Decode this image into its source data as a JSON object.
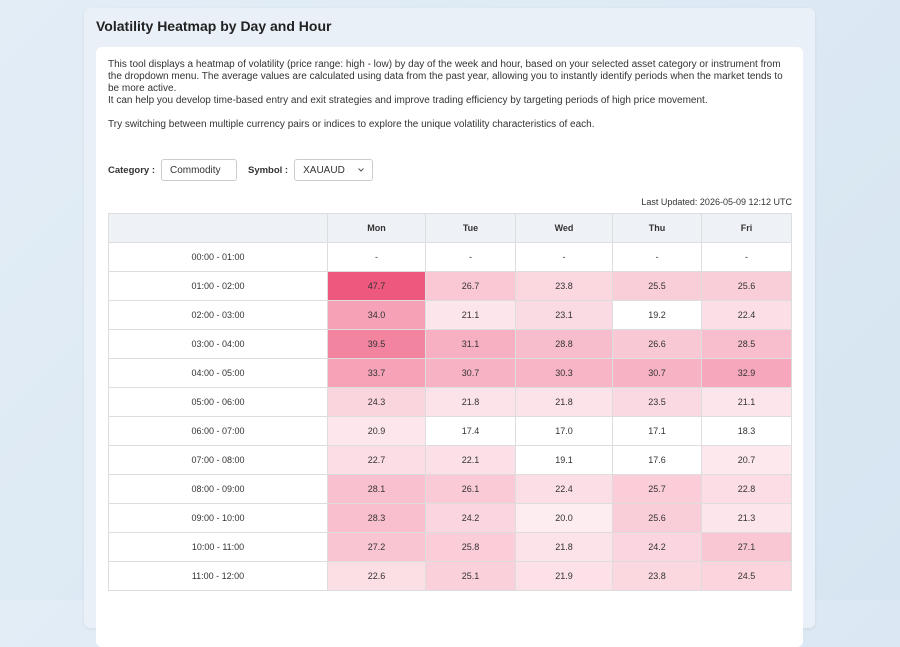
{
  "header": {
    "title": "Volatility Heatmap by Day and Hour"
  },
  "description": {
    "paragraphs": [
      "This tool displays a heatmap of volatility (price range: high - low) by day of the week and hour, based on your selected asset category or instrument from the dropdown menu. The average values are calculated using data from the past year, allowing you to instantly identify periods when the market tends to be more active.",
      "It can help you develop time-based entry and exit strategies and improve trading efficiency by targeting periods of high price movement.",
      "Try switching between multiple currency pairs or indices to explore the unique volatility characteristics of each."
    ]
  },
  "filters": {
    "category_label": "Category :",
    "category_value": "Commodity",
    "symbol_label": "Symbol :",
    "symbol_value": "XAUAUD"
  },
  "last_updated": "Last Updated: 2026-05-09 12:12 UTC",
  "table": {
    "columns": [
      "Mon",
      "Tue",
      "Wed",
      "Thu",
      "Fri"
    ],
    "rows": [
      {
        "time": "00:00 - 01:00",
        "cells": [
          "-",
          "-",
          "-",
          "-",
          "-"
        ]
      },
      {
        "time": "01:00 - 02:00",
        "cells": [
          "47.7",
          "26.7",
          "23.8",
          "25.5",
          "25.6"
        ]
      },
      {
        "time": "02:00 - 03:00",
        "cells": [
          "34.0",
          "21.1",
          "23.1",
          "19.2",
          "22.4"
        ]
      },
      {
        "time": "03:00 - 04:00",
        "cells": [
          "39.5",
          "31.1",
          "28.8",
          "26.6",
          "28.5"
        ]
      },
      {
        "time": "04:00 - 05:00",
        "cells": [
          "33.7",
          "30.7",
          "30.3",
          "30.7",
          "32.9"
        ]
      },
      {
        "time": "05:00 - 06:00",
        "cells": [
          "24.3",
          "21.8",
          "21.8",
          "23.5",
          "21.1"
        ]
      },
      {
        "time": "06:00 - 07:00",
        "cells": [
          "20.9",
          "17.4",
          "17.0",
          "17.1",
          "18.3"
        ]
      },
      {
        "time": "07:00 - 08:00",
        "cells": [
          "22.7",
          "22.1",
          "19.1",
          "17.6",
          "20.7"
        ]
      },
      {
        "time": "08:00 - 09:00",
        "cells": [
          "28.1",
          "26.1",
          "22.4",
          "25.7",
          "22.8"
        ]
      },
      {
        "time": "09:00 - 10:00",
        "cells": [
          "28.3",
          "24.2",
          "20.0",
          "25.6",
          "21.3"
        ]
      },
      {
        "time": "10:00 - 11:00",
        "cells": [
          "27.2",
          "25.8",
          "21.8",
          "24.2",
          "27.1"
        ]
      },
      {
        "time": "11:00 - 12:00",
        "cells": [
          "22.6",
          "25.1",
          "21.9",
          "23.8",
          "24.5"
        ]
      }
    ]
  }
}
